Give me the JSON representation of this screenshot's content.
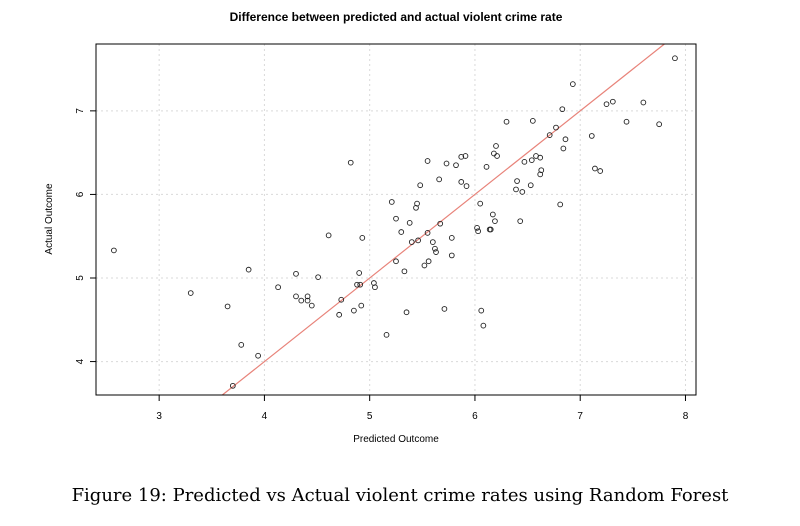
{
  "chart_data": {
    "type": "scatter",
    "title": "Difference between predicted and actual violent crime rate",
    "xlabel": "Predicted Outcome",
    "ylabel": "Actual Outcome",
    "xlim": [
      2.4,
      8.1
    ],
    "ylim": [
      3.6,
      7.8
    ],
    "xticks": [
      3,
      4,
      5,
      6,
      7,
      8
    ],
    "yticks": [
      4,
      5,
      6,
      7
    ],
    "grid": true,
    "reference_line": {
      "slope": 1,
      "intercept": 0,
      "color": "#e8837a"
    },
    "point_color": "#222222",
    "points": [
      [
        2.57,
        5.33
      ],
      [
        3.3,
        4.82
      ],
      [
        3.65,
        4.66
      ],
      [
        3.7,
        3.71
      ],
      [
        3.78,
        4.2
      ],
      [
        3.85,
        5.1
      ],
      [
        3.94,
        4.07
      ],
      [
        4.13,
        4.89
      ],
      [
        4.3,
        5.05
      ],
      [
        4.3,
        4.78
      ],
      [
        4.35,
        4.73
      ],
      [
        4.41,
        4.73
      ],
      [
        4.41,
        4.78
      ],
      [
        4.45,
        4.67
      ],
      [
        4.51,
        5.01
      ],
      [
        4.61,
        5.51
      ],
      [
        4.71,
        4.56
      ],
      [
        4.73,
        4.74
      ],
      [
        4.82,
        6.38
      ],
      [
        4.85,
        4.61
      ],
      [
        4.88,
        4.92
      ],
      [
        4.9,
        5.06
      ],
      [
        4.91,
        4.92
      ],
      [
        4.92,
        4.67
      ],
      [
        4.93,
        5.48
      ],
      [
        5.04,
        4.94
      ],
      [
        5.05,
        4.89
      ],
      [
        5.16,
        4.32
      ],
      [
        5.21,
        5.91
      ],
      [
        5.25,
        5.71
      ],
      [
        5.25,
        5.2
      ],
      [
        5.3,
        5.55
      ],
      [
        5.33,
        5.08
      ],
      [
        5.35,
        4.59
      ],
      [
        5.38,
        5.66
      ],
      [
        5.4,
        5.43
      ],
      [
        5.44,
        5.84
      ],
      [
        5.45,
        5.89
      ],
      [
        5.46,
        5.45
      ],
      [
        5.48,
        6.11
      ],
      [
        5.52,
        5.15
      ],
      [
        5.55,
        5.54
      ],
      [
        5.55,
        6.4
      ],
      [
        5.56,
        5.2
      ],
      [
        5.6,
        5.43
      ],
      [
        5.62,
        5.35
      ],
      [
        5.63,
        5.31
      ],
      [
        5.66,
        6.18
      ],
      [
        5.67,
        5.65
      ],
      [
        5.71,
        4.63
      ],
      [
        5.73,
        6.37
      ],
      [
        5.78,
        5.48
      ],
      [
        5.78,
        5.27
      ],
      [
        5.82,
        6.35
      ],
      [
        5.87,
        6.45
      ],
      [
        5.87,
        6.15
      ],
      [
        5.91,
        6.46
      ],
      [
        5.92,
        6.1
      ],
      [
        6.02,
        5.6
      ],
      [
        6.03,
        5.56
      ],
      [
        6.05,
        5.89
      ],
      [
        6.06,
        4.61
      ],
      [
        6.08,
        4.43
      ],
      [
        6.11,
        6.33
      ],
      [
        6.14,
        5.58
      ],
      [
        6.15,
        5.58
      ],
      [
        6.17,
        5.76
      ],
      [
        6.18,
        6.49
      ],
      [
        6.19,
        5.68
      ],
      [
        6.2,
        6.58
      ],
      [
        6.21,
        6.46
      ],
      [
        6.3,
        6.87
      ],
      [
        6.39,
        6.06
      ],
      [
        6.4,
        6.16
      ],
      [
        6.43,
        5.68
      ],
      [
        6.45,
        6.03
      ],
      [
        6.47,
        6.39
      ],
      [
        6.53,
        6.11
      ],
      [
        6.54,
        6.41
      ],
      [
        6.55,
        6.88
      ],
      [
        6.58,
        6.46
      ],
      [
        6.62,
        6.24
      ],
      [
        6.62,
        6.44
      ],
      [
        6.63,
        6.29
      ],
      [
        6.71,
        6.71
      ],
      [
        6.77,
        6.8
      ],
      [
        6.81,
        5.88
      ],
      [
        6.83,
        7.02
      ],
      [
        6.84,
        6.55
      ],
      [
        6.86,
        6.66
      ],
      [
        6.93,
        7.32
      ],
      [
        7.11,
        6.7
      ],
      [
        7.14,
        6.31
      ],
      [
        7.19,
        6.28
      ],
      [
        7.25,
        7.08
      ],
      [
        7.31,
        7.11
      ],
      [
        7.44,
        6.87
      ],
      [
        7.6,
        7.1
      ],
      [
        7.75,
        6.84
      ],
      [
        7.9,
        7.63
      ]
    ]
  },
  "caption": "Figure 19: Predicted vs Actual violent crime rates using Random Forest"
}
